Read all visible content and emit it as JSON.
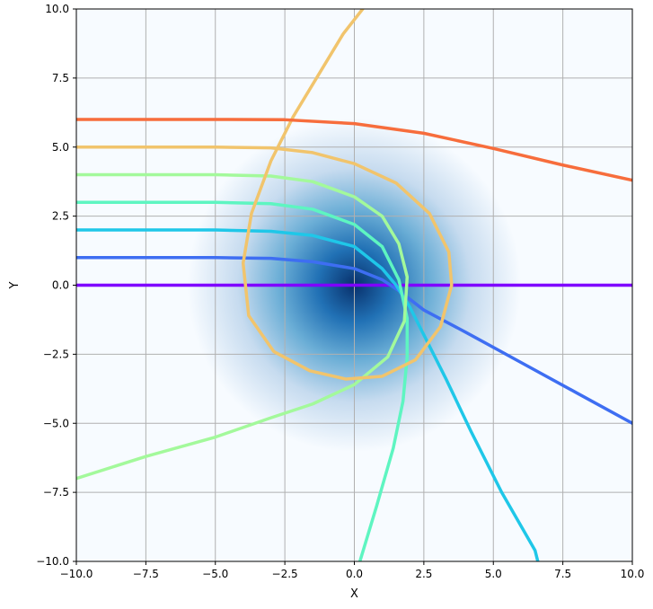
{
  "chart_data": {
    "type": "line",
    "title": "",
    "xlabel": "X",
    "ylabel": "Y",
    "xlim": [
      -10,
      10
    ],
    "ylim": [
      -10,
      10
    ],
    "grid": true,
    "legend": "none",
    "x_ticks": [
      "−10.0",
      "−7.5",
      "−5.0",
      "−2.5",
      "0.0",
      "2.5",
      "5.0",
      "7.5",
      "10.0"
    ],
    "x_tick_values": [
      -10,
      -7.5,
      -5,
      -2.5,
      0,
      2.5,
      5,
      7.5,
      10
    ],
    "y_ticks": [
      "−10.0",
      "−7.5",
      "−5.0",
      "−2.5",
      "0.0",
      "2.5",
      "5.0",
      "7.5",
      "10.0"
    ],
    "y_tick_values": [
      -10,
      -7.5,
      -5,
      -2.5,
      0,
      2.5,
      5,
      7.5,
      10
    ],
    "background_field": {
      "type": "gaussian",
      "center": [
        0,
        0
      ],
      "sigma": 2.0,
      "colormap": "Blues",
      "colors": [
        "#f7fbff",
        "#c6dbef",
        "#6baed6",
        "#2171b5",
        "#08306b"
      ]
    },
    "series": [
      {
        "color": "#7f00ff",
        "points": [
          [
            -10,
            0
          ],
          [
            10,
            0
          ]
        ]
      },
      {
        "color": "#3e6ef2",
        "points": [
          [
            -10,
            1
          ],
          [
            -5,
            1
          ],
          [
            -3,
            0.97
          ],
          [
            -1.5,
            0.85
          ],
          [
            0,
            0.6
          ],
          [
            1,
            0.2
          ],
          [
            1.6,
            -0.2
          ],
          [
            2.5,
            -0.9
          ],
          [
            4,
            -1.7
          ],
          [
            6,
            -2.8
          ],
          [
            8,
            -3.9
          ],
          [
            10,
            -5
          ]
        ]
      },
      {
        "color": "#1fc7e8",
        "points": [
          [
            -10,
            2
          ],
          [
            -5,
            2
          ],
          [
            -3,
            1.95
          ],
          [
            -1.5,
            1.8
          ],
          [
            0,
            1.4
          ],
          [
            1,
            0.6
          ],
          [
            1.5,
            0
          ],
          [
            2,
            -0.8
          ],
          [
            2.6,
            -2
          ],
          [
            3.3,
            -3.4
          ],
          [
            4.2,
            -5.3
          ],
          [
            5.3,
            -7.5
          ],
          [
            6.5,
            -9.6
          ],
          [
            6.6,
            -10
          ]
        ]
      },
      {
        "color": "#5ef5c1",
        "points": [
          [
            -10,
            3
          ],
          [
            -5,
            3
          ],
          [
            -3,
            2.95
          ],
          [
            -1.5,
            2.75
          ],
          [
            0,
            2.2
          ],
          [
            1,
            1.4
          ],
          [
            1.6,
            0.2
          ],
          [
            1.9,
            -1.2
          ],
          [
            1.9,
            -2.6
          ],
          [
            1.75,
            -4.2
          ],
          [
            1.4,
            -5.9
          ],
          [
            0.8,
            -8
          ],
          [
            0.2,
            -10
          ]
        ]
      },
      {
        "color": "#a3f99b",
        "points": [
          [
            -10,
            4
          ],
          [
            -5,
            4
          ],
          [
            -3,
            3.95
          ],
          [
            -1.5,
            3.75
          ],
          [
            0,
            3.2
          ],
          [
            1,
            2.5
          ],
          [
            1.6,
            1.5
          ],
          [
            1.9,
            0.3
          ],
          [
            1.8,
            -1.3
          ],
          [
            1.2,
            -2.6
          ],
          [
            0,
            -3.6
          ],
          [
            -1.5,
            -4.3
          ],
          [
            -3,
            -4.8
          ],
          [
            -5,
            -5.5
          ],
          [
            -7.5,
            -6.2
          ],
          [
            -10,
            -7
          ]
        ]
      },
      {
        "color": "#f1c46c",
        "points": [
          [
            -10,
            5
          ],
          [
            -5,
            5
          ],
          [
            -3,
            4.97
          ],
          [
            -1.5,
            4.8
          ],
          [
            0,
            4.4
          ],
          [
            1.5,
            3.7
          ],
          [
            2.7,
            2.6
          ],
          [
            3.4,
            1.2
          ],
          [
            3.5,
            0
          ],
          [
            3.1,
            -1.5
          ],
          [
            2.2,
            -2.7
          ],
          [
            1,
            -3.3
          ],
          [
            -0.3,
            -3.4
          ],
          [
            -1.6,
            -3.1
          ],
          [
            -2.9,
            -2.4
          ],
          [
            -3.8,
            -1.1
          ],
          [
            -4,
            0.8
          ],
          [
            -3.7,
            2.6
          ],
          [
            -3,
            4.5
          ],
          [
            -2.2,
            6.1
          ],
          [
            -1.3,
            7.6
          ],
          [
            -0.4,
            9.1
          ],
          [
            0.3,
            10
          ]
        ]
      },
      {
        "color": "#f76d3c",
        "points": [
          [
            -10,
            6
          ],
          [
            -5,
            6
          ],
          [
            -2.5,
            5.99
          ],
          [
            0,
            5.85
          ],
          [
            2.5,
            5.5
          ],
          [
            5,
            4.95
          ],
          [
            7.5,
            4.35
          ],
          [
            10,
            3.8
          ]
        ]
      }
    ]
  }
}
